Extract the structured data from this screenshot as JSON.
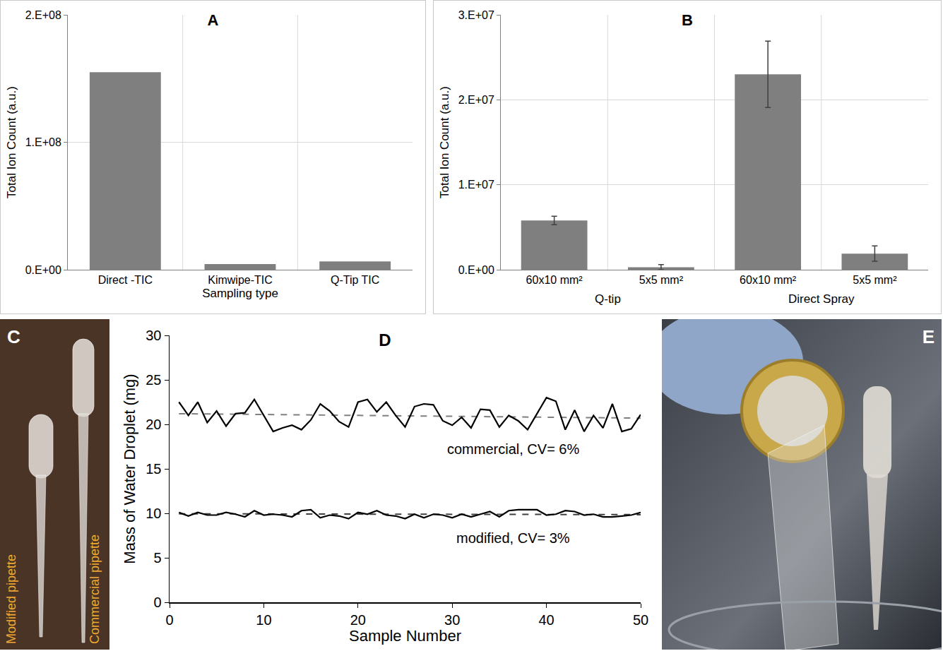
{
  "chart_data": [
    {
      "type": "bar",
      "title": "A",
      "x_label": "Sampling type",
      "y_label": "Total Ion Count (a.u.)",
      "categories": [
        "Direct -TIC",
        "Kimwipe-TIC",
        "Q-Tip TIC"
      ],
      "values": [
        155000000,
        4500000,
        6500000
      ],
      "color": "#7f7f7f",
      "ylim": [
        0,
        200000000
      ],
      "yticks": [
        {
          "value": 0,
          "label": "0.E+00"
        },
        {
          "value": 100000000,
          "label": "1.E+08"
        },
        {
          "value": 200000000,
          "label": "2.E+08"
        }
      ],
      "grid": true
    },
    {
      "type": "bar",
      "title": "B",
      "y_label": "Total Ion Count (a.u.)",
      "categories": [
        "60x10 mm²",
        "5x5 mm²",
        "60x10 mm²",
        "5x5 mm²"
      ],
      "category_groups": [
        "Q-tip",
        "Q-tip",
        "Direct Spray",
        "Direct Spray"
      ],
      "values": [
        5800000,
        300000,
        23000000,
        1900000
      ],
      "errors": [
        500000,
        300000,
        3900000,
        900000
      ],
      "color": "#7f7f7f",
      "ylim": [
        0,
        30000000
      ],
      "yticks": [
        {
          "value": 0,
          "label": "0.E+00"
        },
        {
          "value": 10000000,
          "label": "1.E+07"
        },
        {
          "value": 20000000,
          "label": "2.E+07"
        },
        {
          "value": 30000000,
          "label": "3.E+07"
        }
      ],
      "grid": true
    },
    {
      "type": "line",
      "title": "D",
      "x_label": "Sample Number",
      "y_label": "Mass of Water Droplet (mg)",
      "x": [
        1,
        2,
        3,
        4,
        5,
        6,
        7,
        8,
        9,
        10,
        11,
        12,
        13,
        14,
        15,
        16,
        17,
        18,
        19,
        20,
        21,
        22,
        23,
        24,
        25,
        26,
        27,
        28,
        29,
        30,
        31,
        32,
        33,
        34,
        35,
        36,
        37,
        38,
        39,
        40,
        41,
        42,
        43,
        44,
        45,
        46,
        47,
        48,
        49,
        50
      ],
      "series": [
        {
          "name": "commercial, CV= 6%",
          "color": "#000000",
          "line_style": "solid",
          "values": [
            22.5,
            21.0,
            22.5,
            20.2,
            21.5,
            19.8,
            21.2,
            21.3,
            22.8,
            21.0,
            19.2,
            19.6,
            19.9,
            19.4,
            20.5,
            22.3,
            21.5,
            20.3,
            19.7,
            22.5,
            22.8,
            21.4,
            22.5,
            21.0,
            19.7,
            22.0,
            22.3,
            22.2,
            20.4,
            19.9,
            20.8,
            19.6,
            21.7,
            21.6,
            19.7,
            21.0,
            20.4,
            19.4,
            21.2,
            23.0,
            22.6,
            19.4,
            21.6,
            19.2,
            21.0,
            19.6,
            22.3,
            19.2,
            19.5,
            21.1
          ]
        },
        {
          "name": "modified, CV= 3%",
          "color": "#000000",
          "line_style": "solid",
          "values": [
            10.1,
            9.7,
            10.1,
            9.8,
            9.8,
            10.1,
            9.9,
            9.6,
            10.3,
            9.8,
            9.9,
            9.8,
            9.6,
            10.3,
            10.4,
            9.5,
            9.8,
            9.7,
            9.4,
            10.1,
            9.9,
            10.3,
            9.8,
            9.7,
            9.4,
            9.9,
            9.5,
            9.9,
            9.8,
            9.5,
            9.9,
            9.6,
            9.9,
            10.2,
            9.6,
            10.3,
            10.4,
            10.4,
            10.4,
            9.8,
            9.9,
            10.3,
            10.2,
            9.8,
            9.9,
            9.6,
            9.6,
            9.7,
            9.8,
            10.1
          ]
        }
      ],
      "trend": [
        {
          "x": [
            1,
            50
          ],
          "values": [
            21.2,
            20.7
          ],
          "color": "#808080",
          "line_style": "dashed"
        },
        {
          "x": [
            1,
            50
          ],
          "values": [
            9.95,
            9.85
          ],
          "color": "#404040",
          "line_style": "dashed"
        }
      ],
      "xlim": [
        0,
        50
      ],
      "xticks": [
        0,
        10,
        20,
        30,
        40,
        50
      ],
      "ylim": [
        0,
        30
      ],
      "yticks": [
        0,
        5,
        10,
        15,
        20,
        25,
        30
      ],
      "grid": false
    }
  ],
  "photos": [
    {
      "panel": "C",
      "labels": [
        "Modified pipette",
        "Commercial pipette"
      ]
    },
    {
      "panel": "E"
    }
  ]
}
